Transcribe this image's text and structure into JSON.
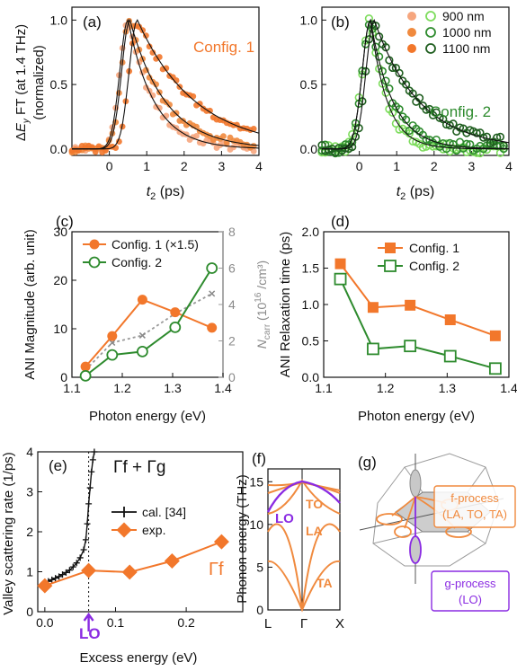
{
  "colors": {
    "orange": "#f2772b",
    "orange_light": "#f6a67e",
    "orange_fit": "#f08a3e",
    "green_dark": "#1f5e1f",
    "green": "#2e8b2e",
    "green_light": "#7ddc5c",
    "gray_axis": "#9a9a9a",
    "purple": "#8a2be2",
    "black": "#111111"
  },
  "chart_data": [
    {
      "panel": "(a)",
      "type": "scatter",
      "annotation": "Config. 1",
      "ylabel": "ΔE_y FT (at 1.4 THz) (normalized)",
      "xlabel": "t_2 (ps)",
      "xlim": [
        -1,
        4
      ],
      "ylim": [
        -0.05,
        1.1
      ],
      "xticks": [
        "0",
        "1",
        "2",
        "3",
        "4"
      ],
      "yticks": [
        "0.0",
        "0.5",
        "1.0"
      ],
      "series": [
        {
          "name": "900 nm",
          "tau": 0.7,
          "peak": 0.5
        },
        {
          "name": "1000 nm",
          "tau": 0.95,
          "peak": 0.55
        },
        {
          "name": "1100 nm",
          "tau": 1.55,
          "peak": 0.75
        }
      ]
    },
    {
      "panel": "(b)",
      "type": "scatter",
      "annotation": "Config. 2",
      "xlabel": "t_2 (ps)",
      "xlim": [
        -1,
        4
      ],
      "ylim": [
        -0.05,
        1.1
      ],
      "xticks": [
        "0",
        "1",
        "2",
        "3",
        "4"
      ],
      "yticks": [
        "0.0",
        "0.5",
        "1.0"
      ],
      "legend": [
        "900 nm",
        "1000 nm",
        "1100 nm"
      ],
      "series": [
        {
          "name": "900 nm",
          "tau": 0.45,
          "peak": 0.3
        },
        {
          "name": "1000 nm",
          "tau": 0.6,
          "peak": 0.3
        },
        {
          "name": "1100 nm",
          "tau": 1.2,
          "peak": 0.4
        }
      ]
    },
    {
      "panel": "(c)",
      "type": "line",
      "xlabel": "Photon energy (eV)",
      "ylabel": "ANI Magnitude (arb. unit)",
      "y2label": "N_carr (10^16 /cm³)",
      "xlim": [
        1.1,
        1.4
      ],
      "ylim": [
        0,
        30
      ],
      "y2lim": [
        0,
        8
      ],
      "xticks": [
        "1.1",
        "1.2",
        "1.3",
        "1.4"
      ],
      "yticks": [
        "0",
        "10",
        "20",
        "30"
      ],
      "y2ticks": [
        "0",
        "2",
        "4",
        "6",
        "8"
      ],
      "legend": [
        "Config. 1 (×1.5)",
        "Config. 2"
      ],
      "series": [
        {
          "name": "Config. 1 (×1.5)",
          "x": [
            1.127,
            1.18,
            1.24,
            1.305,
            1.378
          ],
          "y": [
            2.2,
            8.5,
            16.0,
            13.4,
            10.2
          ]
        },
        {
          "name": "Config. 2",
          "x": [
            1.127,
            1.18,
            1.24,
            1.305,
            1.378
          ],
          "y": [
            0.3,
            4.6,
            5.3,
            10.3,
            22.5
          ]
        },
        {
          "name": "N_carr",
          "axis": "right",
          "x": [
            1.127,
            1.18,
            1.24,
            1.305,
            1.378
          ],
          "y": [
            0.4,
            1.9,
            2.3,
            3.5,
            4.6
          ]
        }
      ]
    },
    {
      "panel": "(d)",
      "type": "line",
      "xlabel": "Photon energy (eV)",
      "ylabel": "ANI Relaxation time (ps)",
      "xlim": [
        1.1,
        1.4
      ],
      "ylim": [
        0,
        2.0
      ],
      "xticks": [
        "1.1",
        "1.2",
        "1.3",
        "1.4"
      ],
      "yticks": [
        "0.0",
        "0.5",
        "1.0",
        "1.5",
        "2.0"
      ],
      "legend": [
        "Config. 1",
        "Config. 2"
      ],
      "series": [
        {
          "name": "Config. 1",
          "x": [
            1.127,
            1.18,
            1.24,
            1.305,
            1.378
          ],
          "y": [
            1.56,
            0.96,
            0.99,
            0.79,
            0.57
          ]
        },
        {
          "name": "Config. 2",
          "x": [
            1.127,
            1.18,
            1.24,
            1.305,
            1.378
          ],
          "y": [
            1.35,
            0.39,
            0.43,
            0.29,
            0.12
          ]
        }
      ]
    },
    {
      "panel": "(e)",
      "type": "line",
      "xlabel": "Excess energy (eV)",
      "ylabel": "Valley scattering rate (1/ps)",
      "xlim": [
        -0.01,
        0.28
      ],
      "ylim": [
        0,
        4
      ],
      "xticks": [
        "0.0",
        "0.1",
        "0.2"
      ],
      "yticks": [
        "0",
        "1",
        "2",
        "3",
        "4"
      ],
      "legend": [
        "cal. [34]",
        "exp."
      ],
      "labels": {
        "top": "Γf + Γg",
        "right": "Γf",
        "lo": "LO"
      },
      "lo_energy": 0.062,
      "series": [
        {
          "name": "cal. [34]",
          "x": [
            0.0,
            0.005,
            0.01,
            0.015,
            0.02,
            0.025,
            0.03,
            0.035,
            0.04,
            0.045,
            0.05,
            0.055,
            0.058,
            0.06,
            0.062,
            0.064,
            0.066,
            0.068,
            0.07
          ],
          "y": [
            0.72,
            0.76,
            0.8,
            0.84,
            0.88,
            0.93,
            0.98,
            1.04,
            1.12,
            1.22,
            1.35,
            1.55,
            1.8,
            2.2,
            2.7,
            3.1,
            3.5,
            3.8,
            4.0
          ]
        },
        {
          "name": "exp.",
          "x": [
            0.0,
            0.062,
            0.12,
            0.18,
            0.25
          ],
          "y": [
            0.65,
            1.03,
            0.99,
            1.27,
            1.75
          ]
        }
      ]
    },
    {
      "panel": "(f)",
      "type": "line",
      "ylabel": "Phonon energy (THz)",
      "ylim": [
        0,
        16.5
      ],
      "yticks": [
        "0",
        "5",
        "10",
        "15"
      ],
      "xticks": [
        "L",
        "Γ",
        "X"
      ],
      "labels": {
        "lo": "LO",
        "to": "TO",
        "la": "LA",
        "ta": "TA"
      }
    },
    {
      "panel": "(g)",
      "type": "diagram",
      "labels": {
        "f_title": "f-process",
        "f_sub": "(LA, TO, TA)",
        "g_title": "g-process",
        "g_sub": "(LO)"
      }
    }
  ]
}
